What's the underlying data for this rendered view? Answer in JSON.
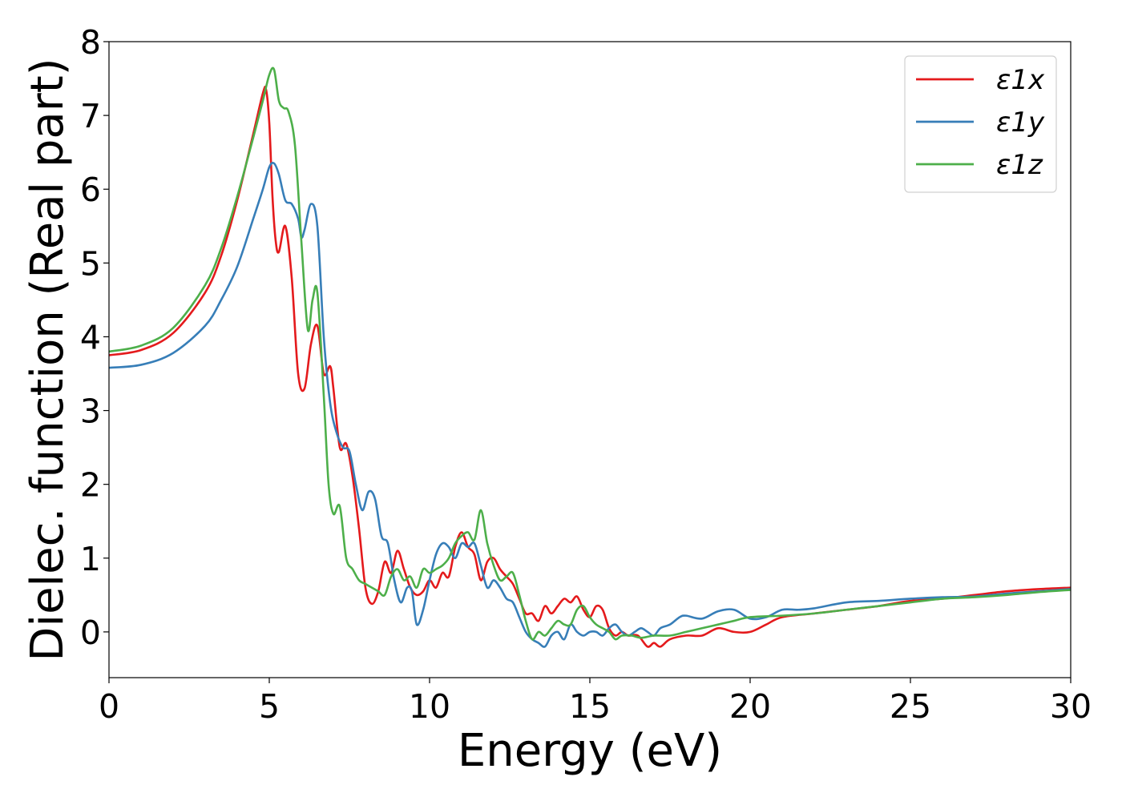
{
  "chart_data": {
    "type": "line",
    "title": "",
    "xlabel": "Energy (eV)",
    "ylabel": "Dielec. function (Real part)",
    "xlim": [
      0,
      30
    ],
    "ylim": [
      -0.62,
      8.0
    ],
    "xticks": [
      0,
      5,
      10,
      15,
      20,
      25,
      30
    ],
    "yticks": [
      0,
      1,
      2,
      3,
      4,
      5,
      6,
      7,
      8
    ],
    "grid": false,
    "legend_position": "top-right",
    "series": [
      {
        "name": "ε1x",
        "color": "#e41a1c",
        "x": [
          0,
          1,
          2,
          3,
          3.5,
          4,
          4.5,
          4.8,
          4.9,
          5.0,
          5.1,
          5.2,
          5.3,
          5.5,
          5.7,
          5.9,
          6.1,
          6.3,
          6.5,
          6.7,
          6.9,
          7.0,
          7.2,
          7.4,
          7.6,
          7.8,
          8.0,
          8.2,
          8.4,
          8.6,
          8.8,
          9.0,
          9.2,
          9.4,
          9.6,
          9.8,
          10.0,
          10.2,
          10.4,
          10.6,
          10.8,
          11.0,
          11.2,
          11.4,
          11.6,
          11.8,
          12.0,
          12.2,
          12.4,
          12.6,
          12.8,
          13.0,
          13.2,
          13.4,
          13.6,
          13.8,
          14.0,
          14.2,
          14.4,
          14.6,
          14.8,
          15.0,
          15.2,
          15.4,
          15.6,
          15.8,
          16.0,
          16.2,
          16.5,
          16.8,
          17.0,
          17.2,
          17.5,
          18.0,
          18.5,
          19.0,
          19.5,
          20.0,
          20.5,
          21.0,
          22.0,
          23.0,
          24.0,
          25.0,
          26.0,
          27.0,
          28.0,
          29.0,
          30.0
        ],
        "values": [
          3.75,
          3.82,
          4.05,
          4.6,
          5.1,
          5.85,
          6.75,
          7.3,
          7.35,
          6.9,
          5.9,
          5.3,
          5.15,
          5.5,
          4.8,
          3.5,
          3.3,
          3.9,
          4.15,
          3.5,
          3.6,
          3.3,
          2.5,
          2.55,
          2.1,
          1.4,
          0.6,
          0.38,
          0.55,
          0.95,
          0.8,
          1.1,
          0.85,
          0.6,
          0.5,
          0.55,
          0.7,
          0.6,
          0.8,
          0.75,
          1.15,
          1.35,
          1.15,
          1.05,
          0.7,
          0.95,
          1.0,
          0.85,
          0.75,
          0.65,
          0.45,
          0.25,
          0.25,
          0.15,
          0.35,
          0.25,
          0.35,
          0.45,
          0.4,
          0.48,
          0.3,
          0.2,
          0.35,
          0.3,
          0.05,
          -0.05,
          0.0,
          -0.05,
          -0.05,
          -0.2,
          -0.15,
          -0.2,
          -0.1,
          -0.05,
          -0.05,
          0.05,
          0.0,
          0.0,
          0.1,
          0.2,
          0.25,
          0.3,
          0.35,
          0.42,
          0.45,
          0.5,
          0.55,
          0.58,
          0.6
        ]
      },
      {
        "name": "ε1y",
        "color": "#377eb8",
        "x": [
          0,
          1,
          2,
          3,
          3.5,
          4,
          4.5,
          4.8,
          5.0,
          5.15,
          5.3,
          5.5,
          5.7,
          5.9,
          6.0,
          6.1,
          6.3,
          6.5,
          6.7,
          6.9,
          7.1,
          7.3,
          7.5,
          7.7,
          7.9,
          8.1,
          8.3,
          8.5,
          8.7,
          8.9,
          9.1,
          9.3,
          9.45,
          9.6,
          9.8,
          10.0,
          10.2,
          10.4,
          10.6,
          10.8,
          11.0,
          11.2,
          11.4,
          11.6,
          11.8,
          12.0,
          12.2,
          12.4,
          12.6,
          12.8,
          13.0,
          13.2,
          13.4,
          13.6,
          13.8,
          14.0,
          14.2,
          14.4,
          14.6,
          14.8,
          15.0,
          15.2,
          15.4,
          15.6,
          15.8,
          16.0,
          16.2,
          16.4,
          16.6,
          16.8,
          17.0,
          17.2,
          17.5,
          17.8,
          18.0,
          18.5,
          19.0,
          19.5,
          20.0,
          20.5,
          21.0,
          21.5,
          22.0,
          23.0,
          24.0,
          25.0,
          26.0,
          27.0,
          28.0,
          29.0,
          30.0
        ],
        "values": [
          3.58,
          3.62,
          3.78,
          4.15,
          4.5,
          4.95,
          5.6,
          6.0,
          6.3,
          6.35,
          6.2,
          5.85,
          5.8,
          5.6,
          5.35,
          5.45,
          5.8,
          5.5,
          4.0,
          3.1,
          2.7,
          2.5,
          2.45,
          2.0,
          1.65,
          1.9,
          1.8,
          1.3,
          1.2,
          0.7,
          0.4,
          0.6,
          0.55,
          0.1,
          0.3,
          0.7,
          1.05,
          1.2,
          1.15,
          1.0,
          1.2,
          1.15,
          1.2,
          0.9,
          0.6,
          0.7,
          0.6,
          0.45,
          0.4,
          0.2,
          0.0,
          -0.1,
          -0.15,
          -0.2,
          -0.05,
          0.0,
          -0.1,
          0.1,
          0.0,
          -0.05,
          0.0,
          0.0,
          -0.05,
          0.05,
          0.1,
          0.0,
          -0.05,
          0.0,
          0.05,
          0.0,
          -0.05,
          0.05,
          0.1,
          0.2,
          0.22,
          0.18,
          0.28,
          0.3,
          0.18,
          0.2,
          0.3,
          0.3,
          0.32,
          0.4,
          0.42,
          0.45,
          0.47,
          0.48,
          0.52,
          0.55,
          0.58
        ]
      },
      {
        "name": "ε1z",
        "color": "#4daf4a",
        "x": [
          0,
          1,
          2,
          3,
          3.5,
          4,
          4.5,
          4.8,
          5.0,
          5.15,
          5.3,
          5.45,
          5.6,
          5.8,
          6.0,
          6.2,
          6.35,
          6.5,
          6.7,
          6.85,
          7.0,
          7.2,
          7.4,
          7.6,
          7.8,
          8.0,
          8.2,
          8.4,
          8.6,
          8.8,
          9.0,
          9.2,
          9.4,
          9.6,
          9.8,
          10.0,
          10.2,
          10.4,
          10.6,
          10.8,
          11.0,
          11.2,
          11.4,
          11.6,
          11.8,
          12.0,
          12.2,
          12.4,
          12.6,
          12.8,
          13.0,
          13.2,
          13.4,
          13.6,
          13.8,
          14.0,
          14.2,
          14.4,
          14.6,
          14.8,
          15.0,
          15.2,
          15.4,
          15.6,
          15.8,
          16.0,
          16.3,
          16.6,
          17.0,
          17.5,
          18.0,
          18.5,
          19.0,
          19.5,
          20.0,
          21.0,
          22.0,
          23.0,
          24.0,
          25.0,
          26.0,
          27.0,
          28.0,
          29.0,
          30.0
        ],
        "values": [
          3.8,
          3.88,
          4.12,
          4.7,
          5.2,
          5.9,
          6.7,
          7.2,
          7.55,
          7.62,
          7.2,
          7.1,
          7.05,
          6.6,
          5.3,
          4.1,
          4.5,
          4.6,
          3.2,
          2.0,
          1.6,
          1.7,
          1.0,
          0.85,
          0.7,
          0.65,
          0.6,
          0.55,
          0.5,
          0.75,
          0.85,
          0.7,
          0.75,
          0.6,
          0.85,
          0.8,
          0.85,
          0.9,
          1.0,
          1.2,
          1.3,
          1.35,
          1.25,
          1.65,
          1.2,
          0.9,
          0.7,
          0.75,
          0.8,
          0.5,
          0.15,
          -0.1,
          0.0,
          -0.05,
          0.05,
          0.15,
          0.1,
          0.1,
          0.3,
          0.35,
          0.2,
          0.1,
          0.05,
          0.0,
          -0.1,
          -0.05,
          -0.05,
          -0.08,
          -0.05,
          -0.05,
          0.0,
          0.05,
          0.1,
          0.15,
          0.2,
          0.22,
          0.25,
          0.3,
          0.35,
          0.4,
          0.45,
          0.47,
          0.5,
          0.54,
          0.57
        ]
      }
    ]
  }
}
